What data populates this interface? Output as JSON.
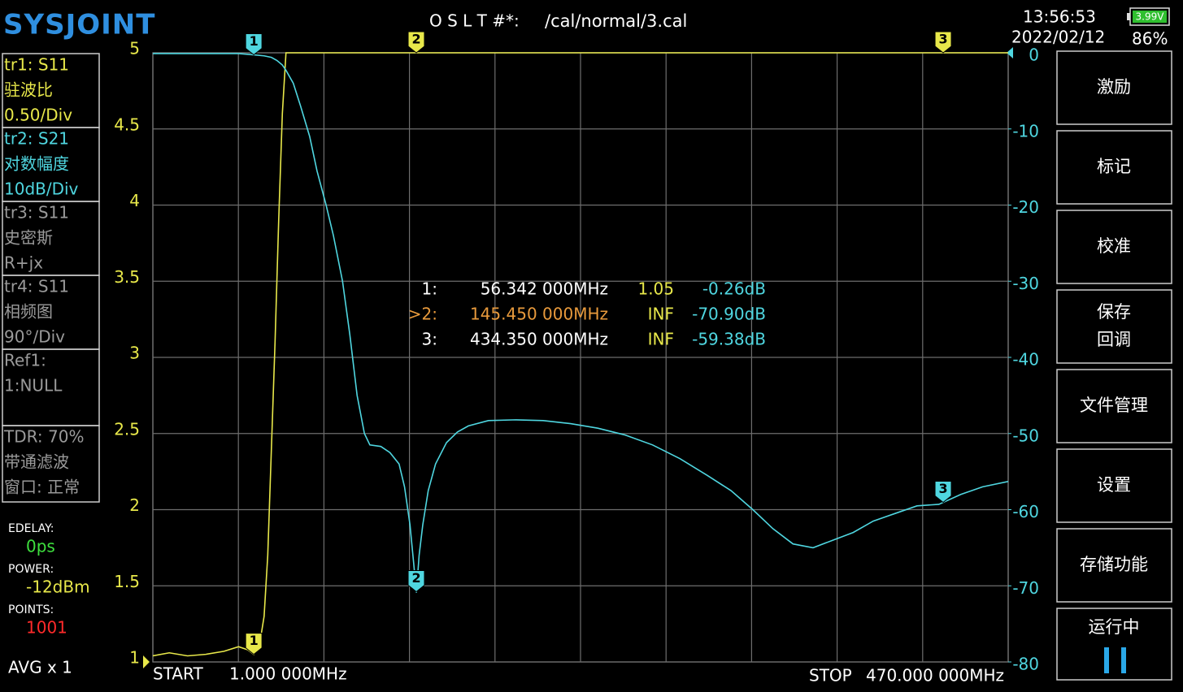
{
  "header": {
    "logo": "SYSJOINT",
    "cal_label": "O S L T #*:",
    "cal_file": "/cal/normal/3.cal",
    "time": "13:56:53",
    "date": "2022/02/12",
    "battery_voltage": "3.99V",
    "battery_percent": "86%"
  },
  "traces": [
    {
      "lines": [
        "tr1:   S11",
        "驻波比",
        "0.50/Div"
      ],
      "color": "#e8e84a"
    },
    {
      "lines": [
        "tr2:   S21",
        "对数幅度",
        "10dB/Div"
      ],
      "color": "#4fd6e0"
    },
    {
      "lines": [
        "tr3:   S11",
        "史密斯",
        "R+jx"
      ],
      "color": "#9a9a9a"
    },
    {
      "lines": [
        "tr4:   S11",
        "相频图",
        "90°/Div"
      ],
      "color": "#9a9a9a"
    },
    {
      "lines": [
        "Ref1:",
        "1:NULL"
      ],
      "color": "#9a9a9a"
    },
    {
      "lines": [
        "TDR: 70%",
        "带通滤波",
        "窗口: 正常"
      ],
      "color": "#9a9a9a"
    }
  ],
  "status": [
    {
      "label": "EDELAY:",
      "value": "0ps",
      "color": "#3ee03e"
    },
    {
      "label": "POWER:",
      "value": "-12dBm",
      "color": "#e8e84a"
    },
    {
      "label": "POINTS:",
      "value": "1001",
      "color": "#ff2a2a"
    }
  ],
  "avg": "AVG x 1",
  "menu": [
    [
      "激励"
    ],
    [
      "标记"
    ],
    [
      "校准"
    ],
    [
      "保存",
      "回调"
    ],
    [
      "文件管理"
    ],
    [
      "设置"
    ],
    [
      "存储功能"
    ],
    [
      "运行中"
    ]
  ],
  "marker_table": [
    [
      "1:",
      "56.342 000MHz",
      "1.05",
      "-0.26dB"
    ],
    [
      ">2:",
      "145.450 000MHz",
      "INF",
      "-70.90dB"
    ],
    [
      "3:",
      "434.350 000MHz",
      "INF",
      "-59.38dB"
    ]
  ],
  "sweep": {
    "start_label": "START",
    "start": "1.000 000MHz",
    "stop_label": "STOP",
    "stop": "470.000 000MHz"
  },
  "chart_data": {
    "type": "line",
    "xlim": [
      1,
      470
    ],
    "ylim": [
      1,
      5
    ],
    "yticks": [
      1,
      1.5,
      2,
      2.5,
      3,
      3.5,
      4,
      4.5,
      5
    ],
    "y2lim": [
      -80,
      0
    ],
    "y2ticks": [
      -80,
      -70,
      -60,
      -50,
      -40,
      -30,
      -20,
      -10,
      0
    ],
    "grid": true,
    "series": [
      {
        "name": "S11",
        "color": "#e8e84a",
        "x": [
          1,
          10,
          20,
          30,
          40,
          48,
          53,
          56.342,
          60,
          62,
          64,
          66,
          68,
          70,
          72,
          74,
          470
        ],
        "values": [
          1.04,
          1.06,
          1.04,
          1.05,
          1.07,
          1.1,
          1.08,
          1.05,
          1.15,
          1.3,
          1.7,
          2.4,
          3.1,
          3.9,
          4.6,
          5,
          5
        ]
      },
      {
        "name": "S21",
        "color": "#4fd6e0",
        "axis": "y2",
        "x": [
          1,
          20,
          40,
          48,
          56,
          62,
          66,
          69,
          72,
          74,
          78,
          82,
          87,
          91,
          96,
          100,
          105,
          109,
          113,
          117,
          120,
          126,
          131,
          136,
          139,
          142,
          144,
          145.5,
          147,
          149,
          152,
          156,
          162,
          168,
          174,
          185,
          200,
          215,
          230,
          245,
          260,
          275,
          290,
          305,
          318,
          330,
          341,
          352,
          363,
          374,
          385,
          396,
          408,
          420,
          432,
          444,
          456,
          470
        ],
        "values": [
          -0.1,
          -0.1,
          -0.1,
          -0.1,
          -0.26,
          -0.4,
          -0.6,
          -1,
          -1.6,
          -2.3,
          -4,
          -7,
          -11,
          -15.5,
          -20,
          -24,
          -30,
          -37,
          -45,
          -50,
          -51.5,
          -51.7,
          -52.5,
          -54,
          -57,
          -62,
          -67,
          -70.9,
          -66,
          -62,
          -57.5,
          -54,
          -51.2,
          -49.8,
          -49,
          -48.3,
          -48.2,
          -48.3,
          -48.7,
          -49.3,
          -50.2,
          -51.5,
          -53.3,
          -55.5,
          -57.5,
          -60,
          -62.5,
          -64.5,
          -65,
          -64,
          -63,
          -61.5,
          -60.5,
          -59.5,
          -59.3,
          -58,
          -57,
          -56.3
        ]
      }
    ],
    "markers": [
      {
        "label": "1",
        "x": 56.342
      },
      {
        "label": "2",
        "x": 145.45
      },
      {
        "label": "3",
        "x": 434.35
      }
    ]
  }
}
